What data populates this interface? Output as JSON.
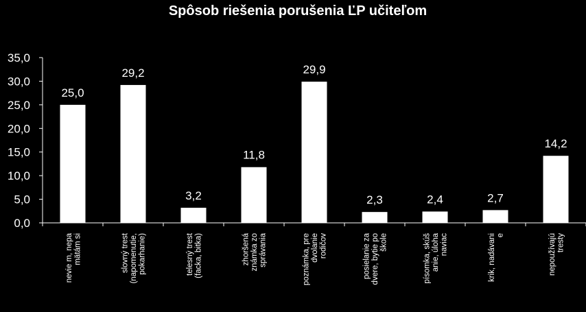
{
  "chart_data": {
    "type": "bar",
    "title": "Spôsob riešenia porušenia ĽP učiteľom",
    "xlabel": "",
    "ylabel": "",
    "ylim": [
      0,
      35
    ],
    "yticks": [
      "0,0",
      "5,0",
      "10,0",
      "15,0",
      "20,0",
      "25,0",
      "30,0",
      "35,0"
    ],
    "grid": false,
    "legend": "none",
    "categories": [
      [
        "nevie m, nepa",
        "mätám si"
      ],
      [
        "slovný trest",
        "(napomenutie,",
        "pokarhanie)"
      ],
      [
        "telesný trest",
        "(facka, bitka)"
      ],
      [
        "zhoršená",
        "známka zo",
        "správania"
      ],
      [
        "poznámka, pre",
        "dvolanie",
        "rodičov"
      ],
      [
        "posielanie za",
        "dvere, bytie po",
        "škole"
      ],
      [
        "písomka, skúš",
        "anie, úloha",
        "naviac"
      ],
      [
        "krik, nadávani",
        "e"
      ],
      [
        "nepoužívajú",
        "tresty"
      ]
    ],
    "values": [
      25.0,
      29.2,
      3.2,
      11.8,
      29.9,
      2.3,
      2.4,
      2.7,
      14.2
    ],
    "value_labels": [
      "25,0",
      "29,2",
      "3,2",
      "11,8",
      "29,9",
      "2,3",
      "2,4",
      "2,7",
      "14,2"
    ],
    "colors": {
      "background": "#000000",
      "bar": "#ffffff",
      "text": "#ffffff",
      "axis": "#ffffff"
    }
  }
}
